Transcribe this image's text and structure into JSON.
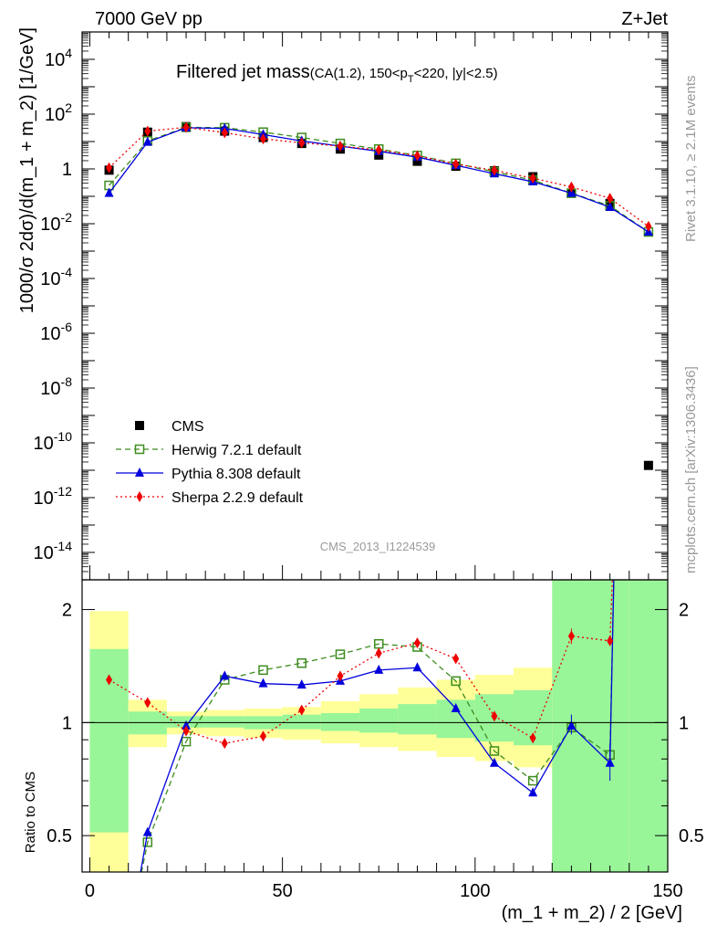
{
  "header": {
    "left": "7000 GeV pp",
    "right": "Z+Jet"
  },
  "title": {
    "main": "Filtered jet mass",
    "cuts_a": "(CA(1.2), 150<p",
    "cuts_sub": "T",
    "cuts_b": "<220, |y|<2.5)"
  },
  "side_labels": {
    "rivet": "Rivet 3.1.10, ≥ 2.1M events",
    "mcplots": "mcplots.cern.ch [arXiv:1306.3436]"
  },
  "watermark": "CMS_2013_I1224539",
  "chart_data": [
    {
      "type": "scatter",
      "panel": "main",
      "ylabel": "1000/σ 2dσ)/d(m_1 + m_2) [1/GeV]",
      "yscale": "log",
      "ylim": [
        1e-15,
        100000.0
      ],
      "xlim": [
        -2,
        150
      ],
      "ytick_exponents": [
        -14,
        -12,
        -10,
        -8,
        -6,
        -4,
        -2,
        0,
        2,
        4
      ],
      "ytick_labels": [
        "10^-14",
        "10^-12",
        "10^-10",
        "10^-8",
        "10^-6",
        "10^-4",
        "10^-2",
        "1",
        "10^2",
        "10^4"
      ],
      "legend_position": "lower-left",
      "x": [
        5,
        15,
        25,
        35,
        45,
        55,
        65,
        75,
        85,
        95,
        105,
        115,
        125,
        135,
        145
      ],
      "series": [
        {
          "name": "CMS",
          "color": "#000000",
          "marker": "square-filled",
          "values": [
            0.9,
            22,
            35,
            24,
            14,
            8.5,
            5.3,
            3.2,
            1.9,
            1.25,
            0.85,
            0.52,
            0.13,
            0.055,
            1.5e-11
          ]
        },
        {
          "name": "Herwig 7.2.1 default",
          "color": "#3d8c1f",
          "marker": "square-open",
          "dash": "6,4",
          "values": [
            0.25,
            10.5,
            33,
            32,
            22,
            14,
            8.5,
            5.3,
            3.1,
            1.6,
            0.78,
            0.39,
            0.13,
            0.045,
            0.005
          ]
        },
        {
          "name": "Pythia 8.308 default",
          "color": "#0000dd",
          "marker": "triangle-filled",
          "dash": "",
          "values": [
            0.13,
            9.5,
            32,
            30,
            18,
            10.5,
            6.8,
            4.4,
            2.7,
            1.35,
            0.67,
            0.34,
            0.13,
            0.04,
            0.005
          ]
        },
        {
          "name": "Sherpa 2.2.9 default",
          "color": "#ee0000",
          "marker": "diamond-filled",
          "dash": "2,3",
          "values": [
            1.1,
            24,
            33,
            21,
            12.5,
            9,
            6.8,
            4.9,
            3.0,
            1.5,
            0.89,
            0.46,
            0.22,
            0.085,
            0.008
          ]
        }
      ]
    },
    {
      "type": "scatter",
      "panel": "ratio",
      "ylabel": "Ratio to CMS",
      "yscale": "log",
      "ylim": [
        0.4,
        2.4
      ],
      "xlim": [
        -2,
        150
      ],
      "xlabel": "(m_1 + m_2) / 2 [GeV]",
      "xticks": [
        0,
        50,
        100,
        150
      ],
      "yticks": [
        0.5,
        1,
        2
      ],
      "reference_line": 1,
      "bins": [
        [
          0,
          10
        ],
        [
          10,
          20
        ],
        [
          20,
          30
        ],
        [
          30,
          40
        ],
        [
          40,
          50
        ],
        [
          50,
          60
        ],
        [
          60,
          70
        ],
        [
          70,
          80
        ],
        [
          80,
          90
        ],
        [
          90,
          100
        ],
        [
          100,
          110
        ],
        [
          110,
          120
        ],
        [
          120,
          130
        ],
        [
          130,
          140
        ],
        [
          140,
          150
        ]
      ],
      "band_green": [
        [
          0.51,
          1.57
        ],
        [
          0.93,
          1.07
        ],
        [
          0.97,
          1.04
        ],
        [
          0.97,
          1.04
        ],
        [
          0.96,
          1.04
        ],
        [
          0.96,
          1.05
        ],
        [
          0.95,
          1.06
        ],
        [
          0.94,
          1.09
        ],
        [
          0.93,
          1.12
        ],
        [
          0.91,
          1.15
        ],
        [
          0.89,
          1.19
        ],
        [
          0.87,
          1.22
        ],
        [
          0.35,
          2.5
        ],
        [
          0.35,
          2.5
        ],
        [
          0.35,
          2.5
        ]
      ],
      "band_yellow": [
        [
          0.35,
          1.98
        ],
        [
          0.86,
          1.15
        ],
        [
          0.93,
          1.07
        ],
        [
          0.92,
          1.08
        ],
        [
          0.91,
          1.09
        ],
        [
          0.9,
          1.1
        ],
        [
          0.88,
          1.14
        ],
        [
          0.86,
          1.19
        ],
        [
          0.84,
          1.24
        ],
        [
          0.81,
          1.3
        ],
        [
          0.79,
          1.34
        ],
        [
          0.76,
          1.4
        ],
        [
          0.53,
          1.87
        ],
        [
          0.35,
          2.5
        ],
        [
          0.35,
          2.5
        ]
      ],
      "series": [
        {
          "name": "Herwig 7.2.1 default",
          "values": [
            null,
            0.48,
            0.89,
            1.3,
            1.38,
            1.44,
            1.52,
            1.62,
            1.59,
            1.29,
            0.84,
            0.7,
            0.97,
            0.82,
            null
          ]
        },
        {
          "name": "Pythia 8.308 default",
          "values": [
            null,
            0.51,
            0.98,
            1.33,
            1.27,
            1.26,
            1.29,
            1.38,
            1.4,
            1.09,
            0.78,
            0.65,
            0.98,
            0.78,
            null
          ]
        },
        {
          "name": "Sherpa 2.2.9 default",
          "values": [
            1.3,
            1.13,
            0.95,
            0.88,
            0.92,
            1.08,
            1.33,
            1.53,
            1.63,
            1.48,
            1.04,
            0.91,
            1.7,
            1.65,
            null
          ]
        }
      ]
    }
  ]
}
